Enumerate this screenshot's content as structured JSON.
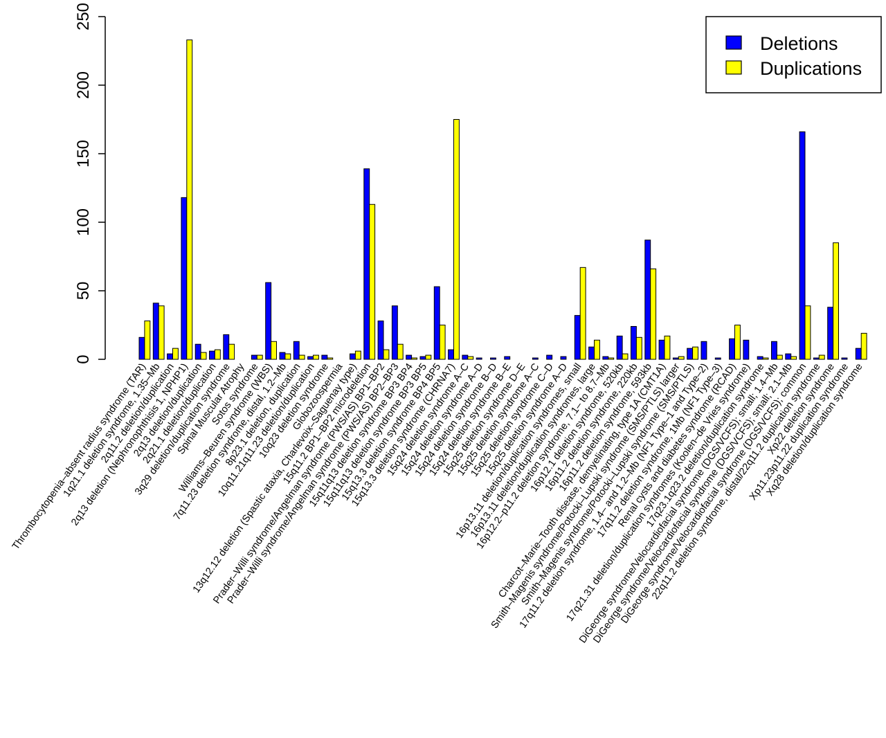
{
  "chart_data": {
    "type": "bar",
    "ylim": [
      0,
      250
    ],
    "yticks": [
      0,
      50,
      100,
      150,
      200,
      250
    ],
    "grid": false,
    "legend_position": "top-right",
    "categories": [
      "Thrombocytopenia–absent radius syndrome (TAR)",
      "1q21.1 deletion syndrome, 1.35–Mb",
      "2q11.2 deletion/duplication",
      "2q13 deletion (Nephronophthisis 1, NPHP1)",
      "2q13 deletion/duplication",
      "2q21.1 deletion/duplication",
      "3q29 deletion/duplication syndrome",
      "Spinal Muscular Atrophy",
      "Sotos syndrome",
      "Williams–Beuren syndrome (WBS)",
      "7q11.23 deletion syndrome, distal, 1.2–Mb",
      "8p23.1 deletion, duplication",
      "10q11.21q11.23 deletion/duplication",
      "10q23 deletion syndrome",
      "Globozoospermia",
      "13q12.12 deletion (Spastic ataxia, Charlevoix–Saguenay type)",
      "15q11.2 BP1–BP2 microdeletion",
      "Prader–Willi syndrome/Angelman syndrome (PWS/AS) BP1–BP2",
      "Prader–Willi syndrome/Angelman syndrome (PWS/AS) BP2–BP3",
      "15q11q13 deletion syndrome BP3 BP4",
      "15q11q13 deletion syndrome BP3 BP5",
      "15q13.3 deletion syndrome BP4 BP5",
      "15q13.3 deletion syndrome (CHRNA7)",
      "15q24 deletion syndrome A–C",
      "15q24 deletion syndrome A–D",
      "15q24 deletion syndrome B–D",
      "15q24 deletion syndrome B–E",
      "15q25 deletion syndrome D–E",
      "15q25 deletion syndrome A–C",
      "15q25 deletion syndrome C–D",
      "15q25 deletion syndrome A–D",
      "16p13.11 deletion/duplication syndromes, small",
      "16p13.11 deletion/duplication syndromes, large",
      "16p12.2–p11.2 deletion syndrome, 7.1– to 8.7–Mb",
      "16p12.1 deletion syndrome, 520kb",
      "16p11.2 deletion syndrome, 220kb",
      "16p11.2 deletion syndrome, 593kb",
      "Charcot–Marie–Tooth disease, demyelinating, type 1A (CMT1A)",
      "Smith–Magenis syndrome/Potocki–Lupski syndrome (SMS/PTLS) larger",
      "Smith–Magenis syndrome/Potocki–Lupski syndrome (SMS/PTLS)",
      "17q11.2 deletion syndrome, 1.4– and 1.2–Mb (NF1 Type–1 and Type–2)",
      "17q11.2 deletion syndrome, 1Mb (NF1 Type–3)",
      "Renal cysts and diabetes syndrome (RCAD)",
      "17q21.31 deletion/duplication syndromes (Koolen–de Vries syndrome)",
      "17q23.1q23.2 deletion/duplication syndrome",
      "DiGeorge syndrome/Velocardiofacial syndrome (DGS/VCFS); small; 1.4–Mb",
      "DiGeorge syndrome/Velocardiofacial syndrome (DGS/VCFS); small; 2.1–Mb",
      "DiGeorge syndrome/Velocardiofacial syndrome (DGS/VCFS); common",
      "22q11.2 deletion syndrome, distal/22q11.2 duplication syndrome",
      "Xp22 deletion syndrome",
      "Xp11.23p11.22 duplication syndrome",
      "Xq28 deletion/duplication syndrome"
    ],
    "series": [
      {
        "name": "Deletions",
        "color": "#0000ff",
        "values": [
          16,
          41,
          4,
          118,
          11,
          6,
          18,
          0,
          3,
          56,
          5,
          13,
          2,
          3,
          0,
          4,
          139,
          28,
          39,
          3,
          2,
          53,
          7,
          3,
          1,
          1,
          2,
          0,
          1,
          3,
          2,
          32,
          9,
          2,
          17,
          24,
          87,
          14,
          1,
          8,
          13,
          1,
          15,
          14,
          2,
          13,
          4,
          166,
          1,
          38,
          1,
          8
        ]
      },
      {
        "name": "Duplications",
        "color": "#ffff00",
        "values": [
          28,
          39,
          8,
          233,
          5,
          7,
          11,
          0,
          3,
          13,
          4,
          3,
          3,
          1,
          0,
          6,
          113,
          7,
          11,
          1,
          3,
          25,
          175,
          2,
          0,
          0,
          0,
          0,
          0,
          0,
          0,
          67,
          14,
          1,
          4,
          16,
          66,
          17,
          2,
          9,
          0,
          0,
          25,
          0,
          1,
          3,
          2,
          39,
          3,
          85,
          0,
          19
        ]
      }
    ]
  }
}
